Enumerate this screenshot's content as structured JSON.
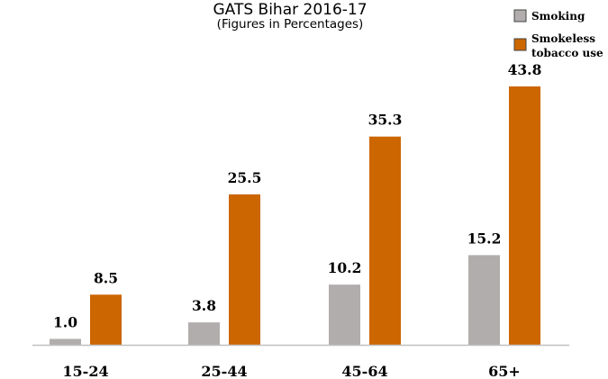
{
  "chart_data": {
    "type": "bar",
    "title": "GATS Bihar 2016-17",
    "subtitle": "(Figures in Percentages)",
    "categories": [
      "15-24",
      "25-44",
      "45-64",
      "65+"
    ],
    "series": [
      {
        "name": "Smoking",
        "values": [
          1.0,
          3.8,
          10.2,
          15.2
        ],
        "labels": [
          "1.0",
          "3.8",
          "10.2",
          "15.2"
        ],
        "color": "#b0adac"
      },
      {
        "name": "Smokeless tobacco use",
        "values": [
          8.5,
          25.5,
          35.3,
          43.8
        ],
        "labels": [
          "8.5",
          "25.5",
          "35.3",
          "43.8"
        ],
        "color": "#cc6600"
      }
    ],
    "ylim": [
      0,
      50
    ],
    "grid": false,
    "legend": "top-right",
    "axis_color": "#c0c0c0"
  }
}
